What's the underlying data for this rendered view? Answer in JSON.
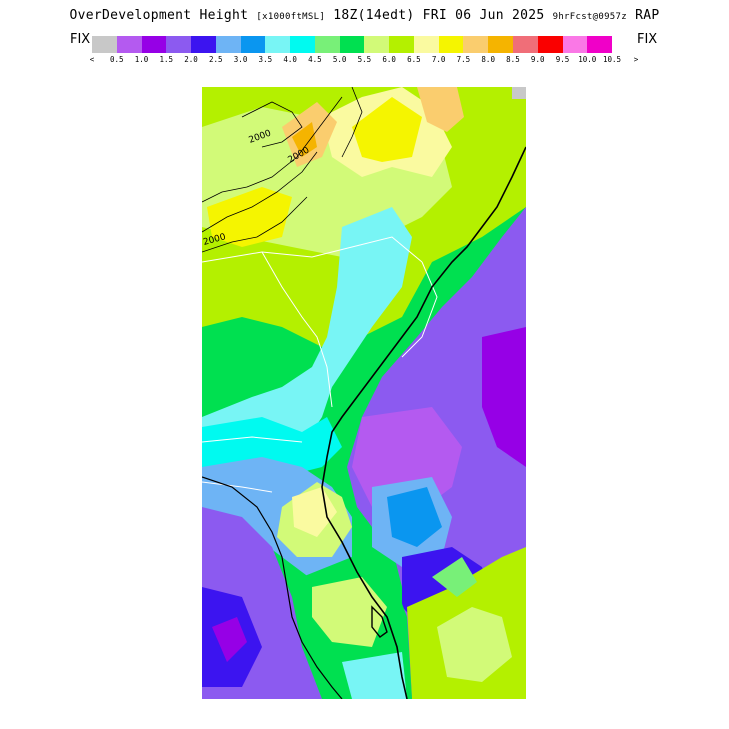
{
  "header": {
    "title_main": "OverDevelopment Height",
    "units": "[x1000ftMSL]",
    "valid_time": "18Z(14edt) FRI 06 Jun 2025",
    "forecast_info": "9hrFcst@0957z",
    "model": "RAP"
  },
  "colorbar": {
    "left_label": "FIX",
    "right_label": "FIX",
    "less_symbol": "<",
    "greater_symbol": ">",
    "tick_labels": [
      "0.5",
      "1.0",
      "1.5",
      "2.0",
      "2.5",
      "3.0",
      "3.5",
      "4.0",
      "4.5",
      "5.0",
      "5.5",
      "6.0",
      "6.5",
      "7.0",
      "7.5",
      "8.0",
      "8.5",
      "9.0",
      "9.5",
      "10.0",
      "10.5"
    ],
    "colors": [
      "#c8c8c8",
      "#b45af0",
      "#9600e6",
      "#8c5af0",
      "#3c14f0",
      "#6eb4f5",
      "#0a96f0",
      "#78f5f5",
      "#00faf0",
      "#78f078",
      "#00e050",
      "#d2fa78",
      "#b4f000",
      "#fafaa0",
      "#f5f500",
      "#facd6e",
      "#f5b400",
      "#f06e78",
      "#fa0000",
      "#fa78e6",
      "#f000c8"
    ]
  },
  "map": {
    "contour_labels": [
      "2000",
      "2000",
      "2000"
    ]
  }
}
